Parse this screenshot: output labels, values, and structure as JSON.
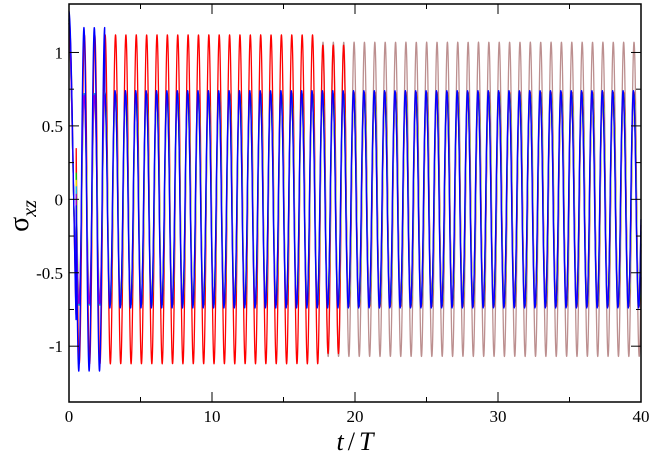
{
  "chart_data": {
    "type": "line",
    "title": "",
    "xlabel_parts": [
      "t",
      "/",
      "T"
    ],
    "ylabel_parts": [
      "σ",
      "xz"
    ],
    "xlim": [
      0,
      40
    ],
    "ylim": [
      -1.38,
      1.33
    ],
    "xticks": [
      0,
      10,
      20,
      30,
      40
    ],
    "xtick_labels": [
      "0",
      "10",
      "20",
      "30",
      "40"
    ],
    "yticks": [
      -1,
      -0.5,
      0,
      0.5,
      1
    ],
    "ytick_labels": [
      "-1",
      "-0.5",
      "0",
      "0.5",
      "1"
    ],
    "grid": false,
    "legend": "none",
    "oscillation_period_in_t_over_T": 0.725,
    "series": [
      {
        "color": "#bc8f8f",
        "segments": [
          {
            "x_range": [
              17.5,
              40
            ],
            "amplitude": 1.07
          }
        ],
        "initial_peak": 1.2
      },
      {
        "color": "#ff0000",
        "segments": [
          {
            "x_range": [
              0,
              17.5
            ],
            "amplitude": 1.12
          },
          {
            "x_range": [
              17.5,
              19.4
            ],
            "amplitude": 1.05
          },
          {
            "x_range": [
              19.4,
              40
            ],
            "amplitude": 0.73
          }
        ],
        "initial_peak": 1.25
      },
      {
        "color": "#00cc00",
        "segments": [
          {
            "x_range": [
              0,
              40
            ],
            "amplitude": 0.72
          }
        ],
        "initial_peak": 1.22
      },
      {
        "color": "#ffd700",
        "segments": [
          {
            "x_range": [
              0,
              40
            ],
            "amplitude": 0.7
          }
        ],
        "initial_peak": 1.2
      },
      {
        "color": "#00aaff",
        "segments": [
          {
            "x_range": [
              0,
              40
            ],
            "amplitude": 0.72
          }
        ],
        "initial_peak": 1.23
      },
      {
        "color": "#9400d3",
        "segments": [
          {
            "x_range": [
              0,
              40
            ],
            "amplitude": 0.71
          }
        ],
        "initial_peak": 1.2
      },
      {
        "color": "#0000ff",
        "segments": [
          {
            "x_range": [
              0,
              2.5
            ],
            "amplitude": 1.17
          },
          {
            "x_range": [
              2.5,
              40
            ],
            "amplitude": 0.74
          }
        ],
        "initial_peak": 1.28
      }
    ]
  }
}
